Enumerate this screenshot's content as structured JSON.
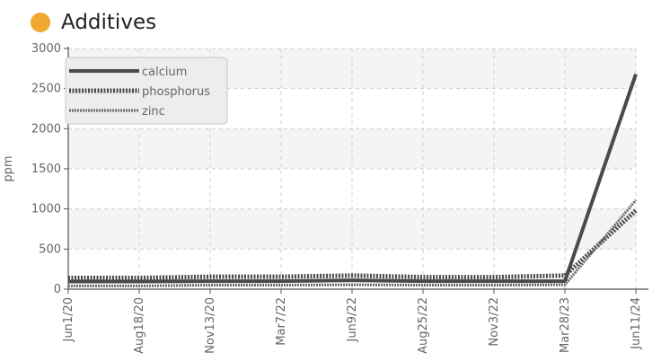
{
  "header": {
    "title": "Additives",
    "dot_color": "#f0a830"
  },
  "chart_data": {
    "type": "line",
    "x": [
      "Jun1/20",
      "Aug18/20",
      "Nov13/20",
      "Mar7/22",
      "Jun9/22",
      "Aug25/22",
      "Nov3/22",
      "Mar28/23",
      "Jun11/24"
    ],
    "ylabel": "ppm",
    "ylim": [
      0,
      3000
    ],
    "yticks": [
      0,
      500,
      1000,
      1500,
      2000,
      2500,
      3000
    ],
    "grid": true,
    "legend_position": "top-left",
    "series": [
      {
        "name": "calcium",
        "values": [
          95,
          95,
          100,
          100,
          110,
          100,
          100,
          100,
          2680
        ],
        "style": "solid"
      },
      {
        "name": "phosphorus",
        "values": [
          140,
          140,
          155,
          155,
          170,
          150,
          150,
          170,
          980
        ],
        "style": "dotted"
      },
      {
        "name": "zinc",
        "values": [
          40,
          40,
          50,
          50,
          55,
          50,
          50,
          55,
          1110
        ],
        "style": "dashed"
      }
    ]
  }
}
